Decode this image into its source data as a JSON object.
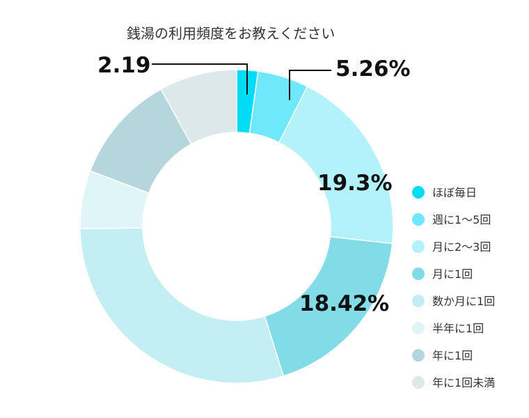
{
  "chart_data": {
    "type": "pie",
    "title": "銭湯の利用頻度をお教えください",
    "slices": [
      {
        "label": "ほぼ毎日",
        "value": 2.19,
        "color": "#00dcf5",
        "data_label": "2.19"
      },
      {
        "label": "週に1～5回",
        "value": 5.26,
        "color": "#6ee8fa",
        "data_label": "5.26%"
      },
      {
        "label": "月に2～3回",
        "value": 19.3,
        "color": "#b3f1fb",
        "data_label": "19.3%"
      },
      {
        "label": "月に1回",
        "value": 18.42,
        "color": "#82dce8",
        "data_label": "18.42%"
      },
      {
        "label": "数か月に1回",
        "value": 29.6,
        "color": "#c3eef4",
        "data_label": ""
      },
      {
        "label": "半年に1回",
        "value": 6.0,
        "color": "#dff5f8",
        "data_label": ""
      },
      {
        "label": "年に1回",
        "value": 11.2,
        "color": "#b5d6dc",
        "data_label": ""
      },
      {
        "label": "年に1回未満",
        "value": 8.03,
        "color": "#dde8eb",
        "data_label": ""
      }
    ],
    "legend_position": "right"
  }
}
